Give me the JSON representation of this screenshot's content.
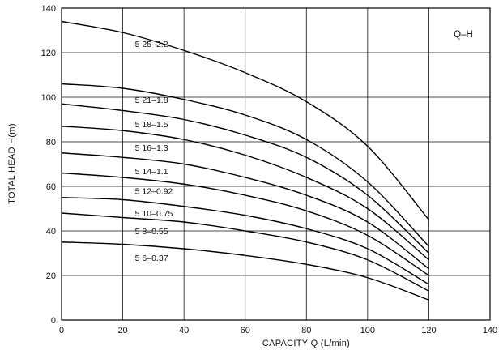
{
  "chart_data": {
    "type": "line",
    "title": "",
    "corner_label": "Q–H",
    "xlabel": "CAPACITY  Q (L/min)",
    "ylabel": "TOTAL HEAD  H(m)",
    "xlim": [
      0,
      140
    ],
    "ylim": [
      0,
      140
    ],
    "x_ticks": [
      "0",
      "20",
      "40",
      "60",
      "80",
      "100",
      "120",
      "140"
    ],
    "y_ticks": [
      "0",
      "20",
      "40",
      "60",
      "80",
      "100",
      "120",
      "140"
    ],
    "grid": true,
    "legend": "none",
    "series": [
      {
        "name": "5 25–2.2",
        "x": [
          0,
          20,
          40,
          60,
          80,
          100,
          120
        ],
        "y": [
          134,
          129,
          121,
          111,
          98,
          78,
          45
        ],
        "label_at": [
          24,
          124
        ]
      },
      {
        "name": "5 21–1.8",
        "x": [
          0,
          20,
          40,
          60,
          80,
          100,
          120
        ],
        "y": [
          106,
          104,
          99,
          92,
          81,
          62,
          33
        ],
        "label_at": [
          24,
          99
        ]
      },
      {
        "name": "5 18–1.5",
        "x": [
          0,
          20,
          40,
          60,
          80,
          100,
          120
        ],
        "y": [
          97,
          94,
          90,
          83,
          73,
          56,
          30
        ],
        "label_at": [
          24,
          88
        ]
      },
      {
        "name": "5 16–1.3",
        "x": [
          0,
          20,
          40,
          60,
          80,
          100,
          120
        ],
        "y": [
          87,
          85,
          81,
          74,
          64,
          50,
          27
        ],
        "label_at": [
          24,
          77.5
        ]
      },
      {
        "name": "5 14–1.1",
        "x": [
          0,
          20,
          40,
          60,
          80,
          100,
          120
        ],
        "y": [
          75,
          73,
          70,
          64,
          56,
          44,
          23
        ],
        "label_at": [
          24,
          67
        ]
      },
      {
        "name": "5 12–0.92",
        "x": [
          0,
          20,
          40,
          60,
          80,
          100,
          120
        ],
        "y": [
          66,
          64,
          61,
          56,
          49,
          38,
          20
        ],
        "label_at": [
          24,
          58
        ]
      },
      {
        "name": "5 10–0.75",
        "x": [
          0,
          20,
          40,
          60,
          80,
          100,
          120
        ],
        "y": [
          55,
          54,
          51,
          47,
          41,
          32,
          16
        ],
        "label_at": [
          24,
          48
        ]
      },
      {
        "name": "5 8–0.55",
        "x": [
          0,
          20,
          40,
          60,
          80,
          100,
          120
        ],
        "y": [
          48,
          46,
          44,
          40,
          35,
          27,
          13
        ],
        "label_at": [
          24,
          40
        ]
      },
      {
        "name": "5 6–0.37",
        "x": [
          0,
          20,
          40,
          60,
          80,
          100,
          120
        ],
        "y": [
          35,
          34,
          32,
          29,
          25,
          19,
          9
        ],
        "label_at": [
          24,
          28
        ]
      }
    ]
  }
}
